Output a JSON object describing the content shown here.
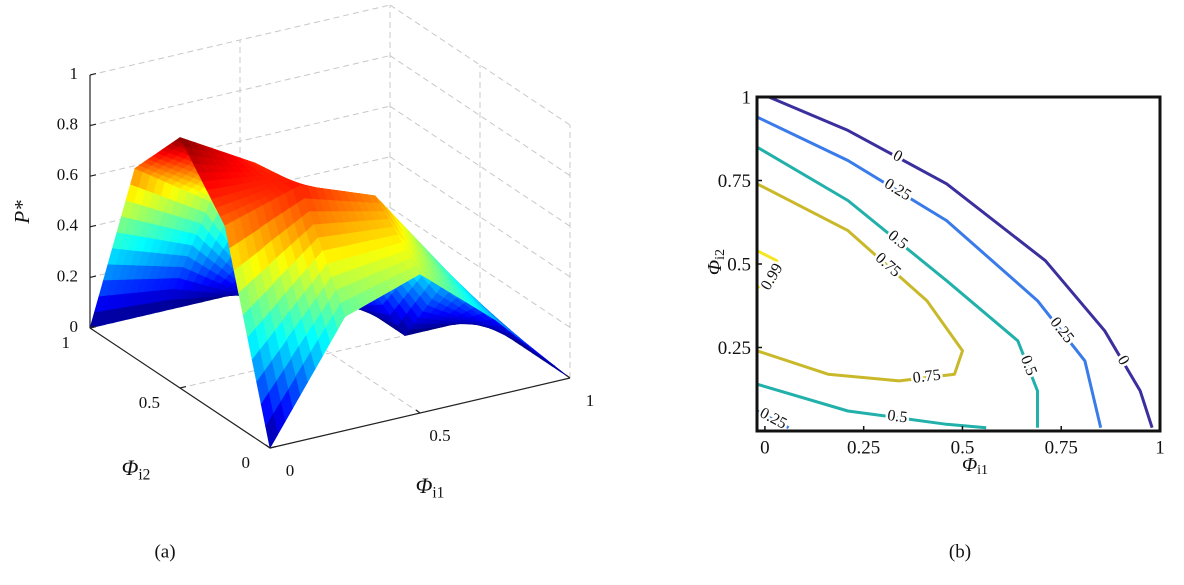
{
  "chart_data": [
    {
      "type": "surface",
      "zlabel": "P*",
      "xlabel": "Φ",
      "xlabel_sub": "i1",
      "ylabel": "Φ",
      "ylabel_sub": "i2",
      "x": [
        0,
        0.25,
        0.5,
        0.75,
        1
      ],
      "y": [
        0,
        0.25,
        0.5,
        0.75,
        1
      ],
      "z": [
        [
          0,
          0.45,
          0.55,
          0.3,
          0
        ],
        [
          0.76,
          0.85,
          0.74,
          0.36,
          0
        ],
        [
          0.99,
          0.82,
          0.48,
          0,
          0
        ],
        [
          0.75,
          0.55,
          0.05,
          0,
          0
        ],
        [
          0,
          0,
          0,
          0,
          0
        ]
      ],
      "xlim": [
        0,
        1
      ],
      "ylim": [
        0,
        1
      ],
      "zlim": [
        0,
        1
      ],
      "xticks": [
        0,
        0.5,
        1
      ],
      "yticks": [
        0,
        0.5,
        1
      ],
      "zticks": [
        0,
        0.2,
        0.4,
        0.6,
        0.8,
        1
      ],
      "colormap": "jet",
      "grid": true,
      "caption": "(a)"
    },
    {
      "type": "contour",
      "xlabel": "Φ",
      "xlabel_sub": "i1",
      "ylabel": "Φ",
      "ylabel_sub": "i2",
      "xlim": [
        -0.02,
        1
      ],
      "ylim": [
        0,
        1
      ],
      "xticks": [
        0,
        0.25,
        0.5,
        0.75,
        1
      ],
      "yticks": [
        0.25,
        0.5,
        0.75,
        1
      ],
      "levels": [
        {
          "level": 0,
          "color": "#3b2f9e",
          "lines": [
            {
              "x": [
                0.01,
                0.21,
                0.46,
                0.71,
                0.86,
                0.95,
                0.98
              ],
              "y": [
                1.0,
                0.9,
                0.74,
                0.51,
                0.3,
                0.12,
                0.01
              ]
            }
          ]
        },
        {
          "level": 0.25,
          "color": "#3a7bea",
          "lines": [
            {
              "x": [
                -0.02,
                0.21,
                0.46,
                0.69,
                0.81,
                0.85
              ],
              "y": [
                0.94,
                0.81,
                0.63,
                0.39,
                0.21,
                0.01
              ]
            },
            {
              "x": [
                -0.02,
                0.06
              ],
              "y": [
                0.06,
                0.01
              ]
            }
          ]
        },
        {
          "level": 0.5,
          "color": "#22b0aa",
          "lines": [
            {
              "x": [
                -0.02,
                0.21,
                0.46,
                0.64,
                0.69,
                0.69
              ],
              "y": [
                0.85,
                0.69,
                0.45,
                0.27,
                0.12,
                0.01
              ]
            },
            {
              "x": [
                -0.02,
                0.21,
                0.46,
                0.56
              ],
              "y": [
                0.14,
                0.06,
                0.02,
                0.01
              ]
            }
          ]
        },
        {
          "level": 0.75,
          "color": "#c9b92a",
          "lines": [
            {
              "x": [
                -0.02,
                0.21,
                0.41,
                0.5,
                0.48,
                0.34,
                0.16,
                -0.02
              ],
              "y": [
                0.74,
                0.6,
                0.39,
                0.24,
                0.17,
                0.15,
                0.17,
                0.24
              ]
            }
          ]
        },
        {
          "level": 0.99,
          "color": "#f5e620",
          "lines": [
            {
              "x": [
                -0.02,
                0.03,
                0.03,
                0.01,
                -0.02
              ],
              "y": [
                0.54,
                0.51,
                0.48,
                0.44,
                0.43
              ]
            }
          ]
        }
      ],
      "caption": "(b)"
    }
  ]
}
